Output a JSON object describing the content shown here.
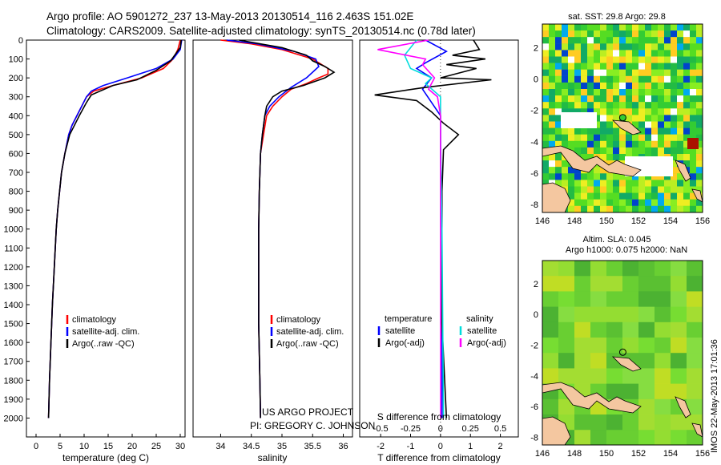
{
  "title": {
    "line1": "Argo profile: AO 5901272_237 13-May-2013 20130514_116 2.463S 151.02E",
    "line2": "Climatology: CARS2009. Satellite-adjusted climatology: synTS_20130514.nc (0.78d later)"
  },
  "credit": {
    "line1": "US ARGO PROJECT",
    "line2": "PI: GREGORY C. JOHNSON"
  },
  "stamp": "IMOS 22-May-2013 17:01:36",
  "colors": {
    "climatology": "#ff0000",
    "satellite": "#0000ff",
    "argo": "#000000",
    "sal_satellite": "#00dddd",
    "sal_argo": "#ff00ff"
  },
  "chart_data": [
    {
      "type": "line",
      "name": "temperature-profile",
      "xlabel": "temperature (deg C)",
      "ylabel": "depth",
      "xlim": [
        -2,
        31
      ],
      "ylim": [
        2100,
        0
      ],
      "y_inverted": true,
      "xticks": [
        0,
        5,
        10,
        15,
        20,
        25,
        30
      ],
      "yticks": [
        0,
        100,
        200,
        300,
        400,
        500,
        600,
        700,
        800,
        900,
        1000,
        1100,
        1200,
        1300,
        1400,
        1500,
        1600,
        1700,
        1800,
        1900,
        2000
      ],
      "legend": [
        "climatology",
        "satellite-adj. clim.",
        "Argo(..raw -QC)"
      ],
      "series": [
        {
          "name": "climatology",
          "color": "#ff0000",
          "points": [
            [
              30,
              0
            ],
            [
              29.5,
              50
            ],
            [
              28.5,
              100
            ],
            [
              26.5,
              150
            ],
            [
              22,
              200
            ],
            [
              16,
              240
            ],
            [
              12,
              270
            ],
            [
              10.5,
              300
            ],
            [
              9.5,
              350
            ],
            [
              8.5,
              400
            ],
            [
              7.5,
              450
            ],
            [
              6.8,
              500
            ],
            [
              6,
              600
            ],
            [
              5.3,
              700
            ],
            [
              4.9,
              800
            ],
            [
              4.5,
              900
            ],
            [
              4.2,
              1000
            ],
            [
              3.8,
              1200
            ],
            [
              3.4,
              1400
            ],
            [
              3.1,
              1600
            ],
            [
              2.8,
              1800
            ],
            [
              2.6,
              2000
            ]
          ]
        },
        {
          "name": "satellite-adj. clim.",
          "color": "#0000ff",
          "points": [
            [
              30.3,
              0
            ],
            [
              30,
              50
            ],
            [
              28.5,
              100
            ],
            [
              25,
              150
            ],
            [
              19,
              200
            ],
            [
              14,
              240
            ],
            [
              11.5,
              270
            ],
            [
              10.5,
              300
            ],
            [
              9.5,
              350
            ],
            [
              8.5,
              400
            ],
            [
              7.5,
              450
            ],
            [
              6.8,
              500
            ],
            [
              6,
              600
            ],
            [
              5.3,
              700
            ],
            [
              4.9,
              800
            ],
            [
              4.5,
              900
            ],
            [
              4.2,
              1000
            ],
            [
              3.8,
              1200
            ],
            [
              3.4,
              1400
            ],
            [
              3.1,
              1600
            ],
            [
              2.8,
              1800
            ],
            [
              2.6,
              2000
            ]
          ]
        },
        {
          "name": "Argo(..raw -QC)",
          "color": "#000000",
          "points": [
            [
              30.2,
              0
            ],
            [
              30,
              40
            ],
            [
              28,
              110
            ],
            [
              25,
              160
            ],
            [
              21,
              210
            ],
            [
              16,
              240
            ],
            [
              11.5,
              290
            ],
            [
              10.5,
              330
            ],
            [
              9,
              400
            ],
            [
              8,
              450
            ],
            [
              7,
              500
            ],
            [
              6,
              600
            ],
            [
              5.3,
              700
            ],
            [
              4.9,
              800
            ],
            [
              4.5,
              900
            ],
            [
              4.2,
              1000
            ],
            [
              3.8,
              1200
            ],
            [
              3.4,
              1400
            ],
            [
              3.1,
              1600
            ],
            [
              2.8,
              1800
            ],
            [
              2.6,
              2000
            ]
          ]
        }
      ]
    },
    {
      "type": "line",
      "name": "salinity-profile",
      "xlabel": "salinity",
      "ylabel": "depth",
      "xlim": [
        33.55,
        36.15
      ],
      "ylim": [
        2100,
        0
      ],
      "y_inverted": true,
      "xticks": [
        34,
        34.5,
        35,
        35.5,
        36
      ],
      "legend": [
        "climatology",
        "satellite-adj. clim.",
        "Argo(..raw -QC)"
      ],
      "series": [
        {
          "name": "climatology",
          "color": "#ff0000",
          "points": [
            [
              34.0,
              0
            ],
            [
              34.5,
              20
            ],
            [
              35.0,
              50
            ],
            [
              35.5,
              100
            ],
            [
              35.75,
              150
            ],
            [
              35.75,
              180
            ],
            [
              35.6,
              200
            ],
            [
              35.4,
              230
            ],
            [
              35.15,
              260
            ],
            [
              35.0,
              300
            ],
            [
              34.85,
              350
            ],
            [
              34.75,
              400
            ],
            [
              34.7,
              500
            ],
            [
              34.65,
              600
            ],
            [
              34.63,
              800
            ],
            [
              34.62,
              1000
            ],
            [
              34.62,
              1500
            ],
            [
              34.64,
              1800
            ],
            [
              34.65,
              2000
            ]
          ]
        },
        {
          "name": "satellite-adj. clim.",
          "color": "#0000ff",
          "points": [
            [
              34.1,
              0
            ],
            [
              34.6,
              20
            ],
            [
              35.2,
              60
            ],
            [
              35.55,
              100
            ],
            [
              35.6,
              140
            ],
            [
              35.4,
              200
            ],
            [
              35.15,
              250
            ],
            [
              34.95,
              300
            ],
            [
              34.8,
              350
            ],
            [
              34.72,
              400
            ],
            [
              34.68,
              500
            ],
            [
              34.65,
              600
            ],
            [
              34.63,
              800
            ],
            [
              34.62,
              1000
            ],
            [
              34.62,
              1500
            ],
            [
              34.64,
              1800
            ],
            [
              34.65,
              2000
            ]
          ]
        },
        {
          "name": "Argo(..raw -QC)",
          "color": "#000000",
          "points": [
            [
              34.3,
              0
            ],
            [
              35.0,
              40
            ],
            [
              35.4,
              80
            ],
            [
              35.5,
              110
            ],
            [
              35.7,
              140
            ],
            [
              35.85,
              170
            ],
            [
              35.7,
              200
            ],
            [
              35.35,
              240
            ],
            [
              35.0,
              270
            ],
            [
              34.85,
              300
            ],
            [
              34.75,
              350
            ],
            [
              34.72,
              400
            ],
            [
              34.68,
              500
            ],
            [
              34.65,
              600
            ],
            [
              34.63,
              800
            ],
            [
              34.62,
              1000
            ],
            [
              34.62,
              1500
            ],
            [
              34.64,
              1800
            ],
            [
              34.65,
              2000
            ]
          ]
        }
      ]
    },
    {
      "type": "line",
      "name": "difference-profile",
      "xlabel_T": "T difference from climatology",
      "xlabel_S": "S difference from climatology",
      "xlim": [
        -2.7,
        2.6
      ],
      "ylim": [
        2100,
        0
      ],
      "y_inverted": true,
      "xticks_T": [
        -2,
        -1,
        0,
        1,
        2
      ],
      "xticks_S": [
        -0.5,
        -0.25,
        0,
        0.25,
        0.5
      ],
      "legend_headers": [
        "temperature",
        "salinity"
      ],
      "legend": [
        "satellite",
        "Argo(-adj)",
        "satellite",
        "Argo(-adj)"
      ],
      "series": [
        {
          "name": "temperature satellite",
          "color": "#0000ff",
          "points": [
            [
              -0.5,
              0
            ],
            [
              0.2,
              60
            ],
            [
              -0.5,
              120
            ],
            [
              -0.8,
              150
            ],
            [
              -0.3,
              200
            ],
            [
              -0.6,
              260
            ],
            [
              0,
              400
            ],
            [
              0,
              600
            ],
            [
              0.05,
              1000
            ],
            [
              0.05,
              2000
            ]
          ]
        },
        {
          "name": "temperature Argo(-adj)",
          "color": "#000000",
          "points": [
            [
              1.1,
              0
            ],
            [
              1.3,
              50
            ],
            [
              0.4,
              80
            ],
            [
              1.5,
              100
            ],
            [
              0.2,
              130
            ],
            [
              1.2,
              150
            ],
            [
              0,
              200
            ],
            [
              1.7,
              210
            ],
            [
              -0.5,
              250
            ],
            [
              -2.2,
              290
            ],
            [
              -0.8,
              320
            ],
            [
              -0.3,
              380
            ],
            [
              0.1,
              440
            ],
            [
              0.6,
              500
            ],
            [
              0.1,
              580
            ],
            [
              0.05,
              800
            ],
            [
              0.05,
              1500
            ],
            [
              0.2,
              2000
            ]
          ]
        },
        {
          "name": "salinity satellite",
          "color": "#00dddd",
          "points": [
            [
              -0.8,
              0
            ],
            [
              -1.2,
              80
            ],
            [
              -1.0,
              150
            ],
            [
              -0.3,
              200
            ],
            [
              -0.5,
              230
            ],
            [
              0,
              300
            ],
            [
              0,
              500
            ],
            [
              0.05,
              1000
            ],
            [
              0.1,
              2000
            ]
          ]
        },
        {
          "name": "salinity Argo(-adj)",
          "color": "#ff00ff",
          "points": [
            [
              -0.4,
              0
            ],
            [
              -2.1,
              50
            ],
            [
              -0.5,
              100
            ],
            [
              -0.6,
              130
            ],
            [
              -0.2,
              200
            ],
            [
              -0.4,
              260
            ],
            [
              -0.1,
              300
            ],
            [
              0,
              400
            ],
            [
              0,
              1000
            ],
            [
              0,
              2000
            ]
          ]
        }
      ]
    },
    {
      "type": "heatmap",
      "name": "sst-map",
      "title": "sat. SST: 29.8  Argo: 29.8",
      "xlim": [
        146,
        156
      ],
      "ylim": [
        -8.5,
        3.5
      ],
      "xticks": [
        146,
        148,
        150,
        152,
        154,
        156
      ],
      "yticks": [
        -8,
        -6,
        -4,
        -2,
        0,
        2
      ],
      "profile_location": [
        151.02,
        -2.463
      ]
    },
    {
      "type": "heatmap",
      "name": "sla-map",
      "title_line1": "Altim. SLA: 0.045",
      "title_line2": "Argo h1000: 0.075  h2000: NaN",
      "xlim": [
        146,
        156
      ],
      "ylim": [
        -8.5,
        3.5
      ],
      "xticks": [
        146,
        148,
        150,
        152,
        154,
        156
      ],
      "yticks": [
        -8,
        -6,
        -4,
        -2,
        0,
        2
      ],
      "profile_location": [
        151.02,
        -2.463
      ]
    }
  ]
}
